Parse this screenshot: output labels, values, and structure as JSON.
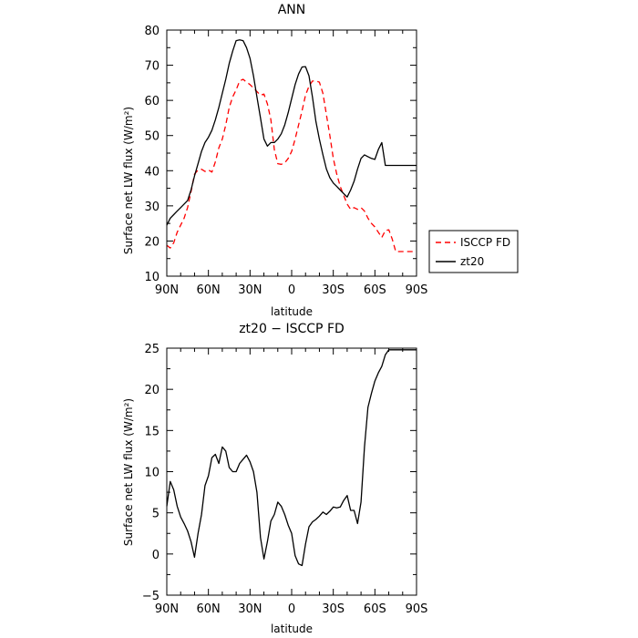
{
  "chart_data": [
    {
      "type": "line",
      "title": "ANN",
      "xlabel": "latitude",
      "ylabel": "Surface net LW flux (W/m²)",
      "xlim": [
        90,
        -90
      ],
      "ylim": [
        10,
        80
      ],
      "x_ticks": [
        "90N",
        "60N",
        "30N",
        "0",
        "30S",
        "60S",
        "90S"
      ],
      "y_ticks": [
        "10",
        "20",
        "30",
        "40",
        "50",
        "60",
        "70",
        "80"
      ],
      "legend": {
        "position": "right",
        "entries": [
          "ISCCP FD",
          "zt20"
        ]
      },
      "x": [
        90,
        87.5,
        85,
        82.5,
        80,
        77.5,
        75,
        72.5,
        70,
        67.5,
        65,
        62.5,
        60,
        57.5,
        55,
        52.5,
        50,
        47.5,
        45,
        42.5,
        40,
        37.5,
        35,
        32.5,
        30,
        27.5,
        25,
        22.5,
        20,
        17.5,
        15,
        12.5,
        10,
        7.5,
        5,
        2.5,
        0,
        -2.5,
        -5,
        -7.5,
        -10,
        -12.5,
        -15,
        -17.5,
        -20,
        -22.5,
        -25,
        -27.5,
        -30,
        -32.5,
        -35,
        -37.5,
        -40,
        -42.5,
        -45,
        -47.5,
        -50,
        -52.5,
        -55,
        -57.5,
        -60,
        -62.5,
        -65,
        -67.5,
        -70,
        -72.5,
        -75,
        -77.5,
        -80,
        -82.5,
        -85,
        -87.5,
        -90
      ],
      "series": [
        {
          "name": "ISCCP FD",
          "color": "#ff0000",
          "dash": "dashed",
          "values": [
            18.8,
            18.0,
            19.5,
            22.5,
            24.5,
            26.5,
            29.5,
            34.0,
            39.0,
            40.2,
            40.4,
            39.8,
            40.2,
            39.6,
            42.5,
            46.5,
            49.0,
            53.0,
            58.0,
            61.0,
            63.0,
            65.5,
            66.0,
            65.2,
            64.5,
            63.5,
            62.5,
            61.5,
            61.8,
            59.0,
            54.5,
            46.0,
            42.0,
            41.8,
            42.2,
            43.5,
            45.5,
            49.0,
            53.0,
            57.0,
            61.5,
            64.0,
            65.5,
            65.5,
            65.2,
            62.0,
            56.0,
            50.0,
            43.5,
            39.0,
            35.5,
            33.0,
            30.5,
            29.0,
            29.5,
            29.0,
            29.5,
            28.5,
            26.5,
            25.0,
            24.0,
            22.5,
            21.0,
            23.0,
            23.2,
            20.5,
            17.0,
            17.0,
            17.0,
            17.0,
            17.0,
            17.0,
            17.0
          ]
        },
        {
          "name": "zt20",
          "color": "#000000",
          "dash": "solid",
          "values": [
            24.5,
            26.5,
            27.5,
            28.5,
            29.5,
            30.5,
            31.5,
            34.5,
            38.5,
            42.0,
            45.5,
            48.0,
            49.5,
            51.5,
            54.5,
            58.0,
            62.0,
            66.0,
            70.5,
            74.0,
            77.0,
            77.2,
            77.0,
            75.0,
            72.0,
            67.0,
            61.0,
            55.0,
            49.0,
            47.0,
            48.0,
            48.0,
            49.0,
            50.5,
            53.0,
            56.5,
            60.5,
            64.5,
            67.5,
            69.5,
            69.6,
            67.0,
            61.0,
            54.0,
            49.0,
            44.5,
            40.5,
            38.0,
            36.5,
            35.5,
            34.5,
            33.5,
            32.5,
            34.5,
            37.0,
            40.5,
            43.5,
            44.5,
            44.0,
            43.5,
            43.2,
            46.0,
            48.0,
            41.5,
            41.5,
            41.5,
            41.5,
            41.5,
            41.5,
            41.5,
            41.5,
            41.5,
            41.5
          ]
        }
      ]
    },
    {
      "type": "line",
      "title": "zt20 − ISCCP FD",
      "xlabel": "latitude",
      "ylabel": "Surface net LW flux (W/m²)",
      "xlim": [
        90,
        -90
      ],
      "ylim": [
        -5,
        25
      ],
      "x_ticks": [
        "90N",
        "60N",
        "30N",
        "0",
        "30S",
        "60S",
        "90S"
      ],
      "y_ticks": [
        "−5",
        "0",
        "5",
        "10",
        "15",
        "20",
        "25"
      ],
      "x": [
        90,
        87.5,
        85,
        82.5,
        80,
        77.5,
        75,
        72.5,
        70,
        67.5,
        65,
        62.5,
        60,
        57.5,
        55,
        52.5,
        50,
        47.5,
        45,
        42.5,
        40,
        37.5,
        35,
        32.5,
        30,
        27.5,
        25,
        22.5,
        20,
        17.5,
        15,
        12.5,
        10,
        7.5,
        5,
        2.5,
        0,
        -2.5,
        -5,
        -7.5,
        -10,
        -12.5,
        -15,
        -17.5,
        -20,
        -22.5,
        -25,
        -27.5,
        -30,
        -32.5,
        -35,
        -37.5,
        -40,
        -42.5,
        -45,
        -47.5,
        -50,
        -52.5,
        -55,
        -57.5,
        -60,
        -62.5,
        -65,
        -67.5,
        -70,
        -72.5,
        -75,
        -77.5,
        -80,
        -82.5,
        -85,
        -87.5,
        -90
      ],
      "series": [
        {
          "color": "#000000",
          "dash": "solid",
          "values": [
            5.8,
            8.8,
            7.8,
            5.8,
            4.5,
            3.7,
            2.8,
            1.5,
            -0.4,
            2.5,
            4.8,
            8.3,
            9.5,
            11.7,
            12.1,
            11.0,
            13.0,
            12.5,
            10.5,
            10.0,
            10.0,
            11.0,
            11.5,
            12.0,
            11.2,
            10.0,
            7.5,
            2.0,
            -0.6,
            1.5,
            4.0,
            4.8,
            6.3,
            5.8,
            4.8,
            3.5,
            2.5,
            -0.2,
            -1.2,
            -1.4,
            1.2,
            3.3,
            3.9,
            4.2,
            4.6,
            5.1,
            4.8,
            5.2,
            5.7,
            5.6,
            5.7,
            6.5,
            7.1,
            5.3,
            5.3,
            3.7,
            6.3,
            13.0,
            17.8,
            19.5,
            21.0,
            22.0,
            22.8,
            24.2,
            24.8,
            24.8,
            24.8,
            24.8,
            24.8,
            24.8,
            24.8,
            24.8,
            24.8
          ]
        }
      ]
    }
  ]
}
